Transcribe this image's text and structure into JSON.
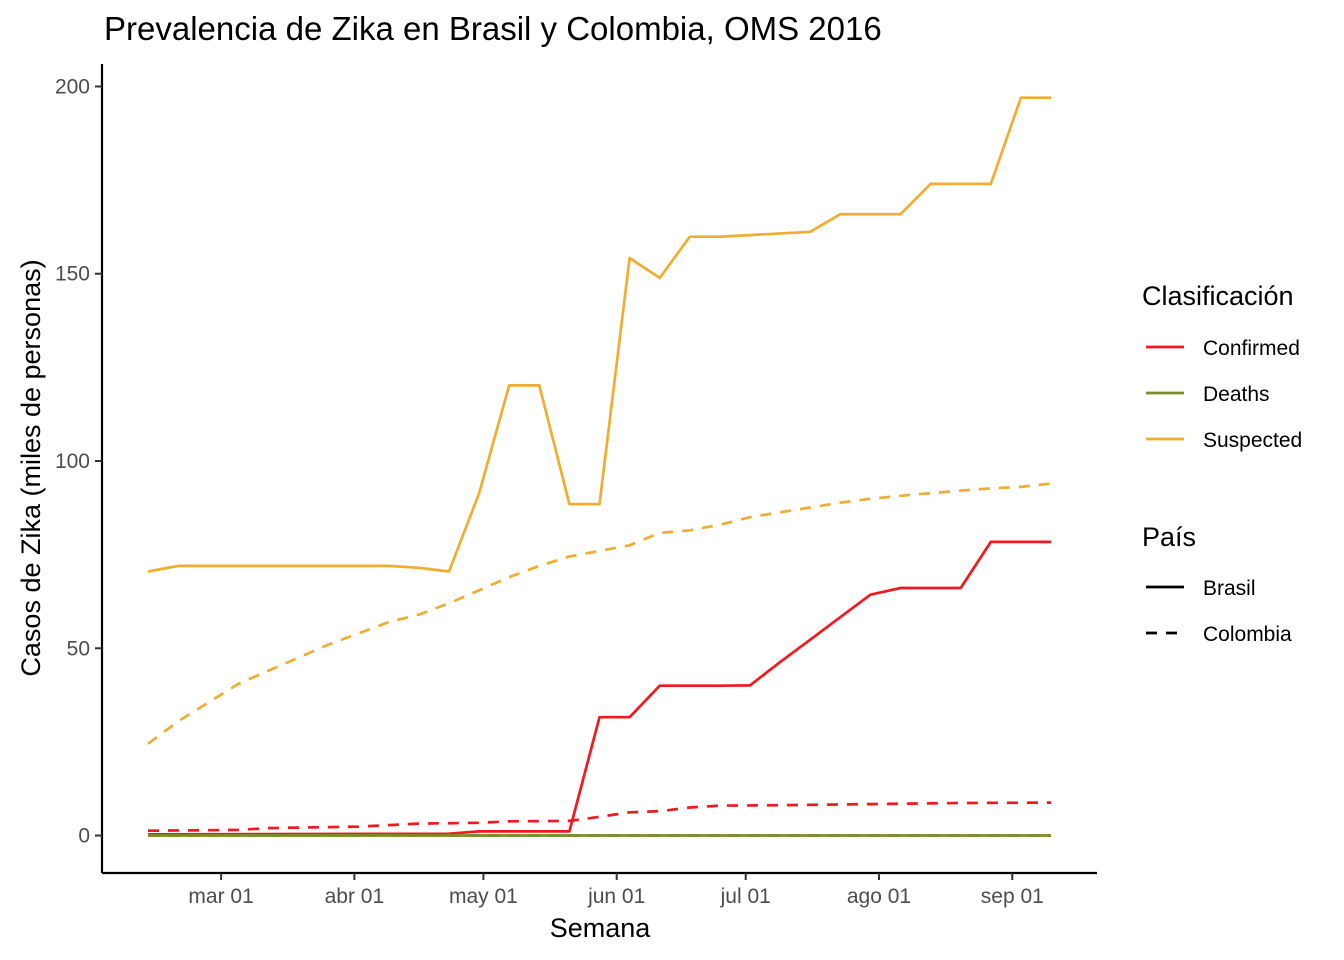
{
  "chart_data": {
    "type": "line",
    "title": "Prevalencia de Zika en Brasil y Colombia, OMS 2016",
    "xlabel": "Semana",
    "ylabel": "Casos de Zika (miles de personas)",
    "x_domain": [
      "2016-02-13",
      "2016-09-10"
    ],
    "ylim": [
      -10,
      206
    ],
    "y_ticks": [
      0,
      50,
      100,
      150,
      200
    ],
    "x_ticks": [
      {
        "date": "2016-03-01",
        "label": "mar 01"
      },
      {
        "date": "2016-04-01",
        "label": "abr 01"
      },
      {
        "date": "2016-05-01",
        "label": "may 01"
      },
      {
        "date": "2016-06-01",
        "label": "jun 01"
      },
      {
        "date": "2016-07-01",
        "label": "jul 01"
      },
      {
        "date": "2016-08-01",
        "label": "ago 01"
      },
      {
        "date": "2016-09-01",
        "label": "sep 01"
      }
    ],
    "grid": false,
    "legend_position": "right",
    "colors": {
      "Confirmed": "#f2181e",
      "Deaths": "#7b8c29",
      "Suspected": "#f2ac2f"
    },
    "line_types": {
      "Brasil": "solid",
      "Colombia": "dashed"
    },
    "series": [
      {
        "classification": "Suspected",
        "country": "Brasil",
        "points": [
          [
            "2016-02-13",
            70.5
          ],
          [
            "2016-02-20",
            72.0
          ],
          [
            "2016-04-09",
            72.0
          ],
          [
            "2016-04-16",
            71.5
          ],
          [
            "2016-04-23",
            70.5
          ],
          [
            "2016-04-30",
            91.4
          ],
          [
            "2016-05-07",
            120.2
          ],
          [
            "2016-05-14",
            120.2
          ],
          [
            "2016-05-21",
            88.5
          ],
          [
            "2016-05-28",
            88.5
          ],
          [
            "2016-06-04",
            154.2
          ],
          [
            "2016-06-11",
            148.9
          ],
          [
            "2016-06-18",
            159.9
          ],
          [
            "2016-06-25",
            159.9
          ],
          [
            "2016-07-16",
            161.2
          ],
          [
            "2016-07-23",
            165.9
          ],
          [
            "2016-08-06",
            165.9
          ],
          [
            "2016-08-13",
            174.0
          ],
          [
            "2016-08-27",
            174.0
          ],
          [
            "2016-09-03",
            197.0
          ],
          [
            "2016-09-10",
            197.0
          ]
        ]
      },
      {
        "classification": "Suspected",
        "country": "Colombia",
        "points": [
          [
            "2016-02-13",
            24.5
          ],
          [
            "2016-02-20",
            30.5
          ],
          [
            "2016-02-27",
            35.5
          ],
          [
            "2016-03-05",
            40.5
          ],
          [
            "2016-03-12",
            44.0
          ],
          [
            "2016-03-19",
            47.5
          ],
          [
            "2016-03-26",
            51.0
          ],
          [
            "2016-04-02",
            54.0
          ],
          [
            "2016-04-09",
            57.0
          ],
          [
            "2016-04-16",
            59.0
          ],
          [
            "2016-04-23",
            62.0
          ],
          [
            "2016-04-30",
            65.5
          ],
          [
            "2016-05-07",
            69.0
          ],
          [
            "2016-05-14",
            72.0
          ],
          [
            "2016-05-21",
            74.5
          ],
          [
            "2016-05-28",
            76.0
          ],
          [
            "2016-06-04",
            77.5
          ],
          [
            "2016-06-11",
            80.8
          ],
          [
            "2016-06-18",
            81.5
          ],
          [
            "2016-06-25",
            83.0
          ],
          [
            "2016-07-02",
            85.0
          ],
          [
            "2016-07-09",
            86.3
          ],
          [
            "2016-07-16",
            87.6
          ],
          [
            "2016-07-23",
            88.9
          ],
          [
            "2016-07-30",
            89.9
          ],
          [
            "2016-08-06",
            90.7
          ],
          [
            "2016-08-13",
            91.4
          ],
          [
            "2016-08-20",
            92.1
          ],
          [
            "2016-08-27",
            92.7
          ],
          [
            "2016-09-03",
            93.1
          ],
          [
            "2016-09-10",
            94.0
          ]
        ]
      },
      {
        "classification": "Confirmed",
        "country": "Brasil",
        "points": [
          [
            "2016-02-13",
            0.3
          ],
          [
            "2016-04-23",
            0.5
          ],
          [
            "2016-04-30",
            1.1
          ],
          [
            "2016-05-21",
            1.1
          ],
          [
            "2016-05-28",
            31.6
          ],
          [
            "2016-06-04",
            31.6
          ],
          [
            "2016-06-11",
            40.0
          ],
          [
            "2016-06-25",
            40.0
          ],
          [
            "2016-07-02",
            40.1
          ],
          [
            "2016-07-09",
            46.3
          ],
          [
            "2016-07-16",
            52.3
          ],
          [
            "2016-07-23",
            58.3
          ],
          [
            "2016-07-30",
            64.3
          ],
          [
            "2016-08-06",
            66.1
          ],
          [
            "2016-08-20",
            66.1
          ],
          [
            "2016-08-27",
            78.4
          ],
          [
            "2016-09-10",
            78.4
          ]
        ]
      },
      {
        "classification": "Confirmed",
        "country": "Colombia",
        "points": [
          [
            "2016-02-13",
            1.3
          ],
          [
            "2016-03-05",
            1.5
          ],
          [
            "2016-03-12",
            2.0
          ],
          [
            "2016-04-02",
            2.4
          ],
          [
            "2016-04-09",
            2.8
          ],
          [
            "2016-04-16",
            3.2
          ],
          [
            "2016-04-30",
            3.4
          ],
          [
            "2016-05-07",
            3.8
          ],
          [
            "2016-05-21",
            3.9
          ],
          [
            "2016-05-28",
            5.0
          ],
          [
            "2016-06-04",
            6.2
          ],
          [
            "2016-06-11",
            6.5
          ],
          [
            "2016-06-18",
            7.5
          ],
          [
            "2016-06-25",
            8.0
          ],
          [
            "2016-07-09",
            8.1
          ],
          [
            "2016-07-30",
            8.4
          ],
          [
            "2016-08-20",
            8.7
          ],
          [
            "2016-09-10",
            8.8
          ]
        ]
      },
      {
        "classification": "Deaths",
        "country": "Brasil",
        "points": [
          [
            "2016-02-13",
            0.0
          ],
          [
            "2016-09-10",
            0.0
          ]
        ]
      },
      {
        "classification": "Deaths",
        "country": "Colombia",
        "points": [
          [
            "2016-02-13",
            0.0
          ],
          [
            "2016-09-10",
            0.0
          ]
        ]
      }
    ]
  },
  "legend": {
    "color_title": "Clasificación",
    "color_items": [
      {
        "label": "Confirmed",
        "color": "#f2181e"
      },
      {
        "label": "Deaths",
        "color": "#7b8c29"
      },
      {
        "label": "Suspected",
        "color": "#f2ac2f"
      }
    ],
    "linetype_title": "País",
    "linetype_items": [
      {
        "label": "Brasil",
        "dash": "solid"
      },
      {
        "label": "Colombia",
        "dash": "dashed"
      }
    ]
  }
}
